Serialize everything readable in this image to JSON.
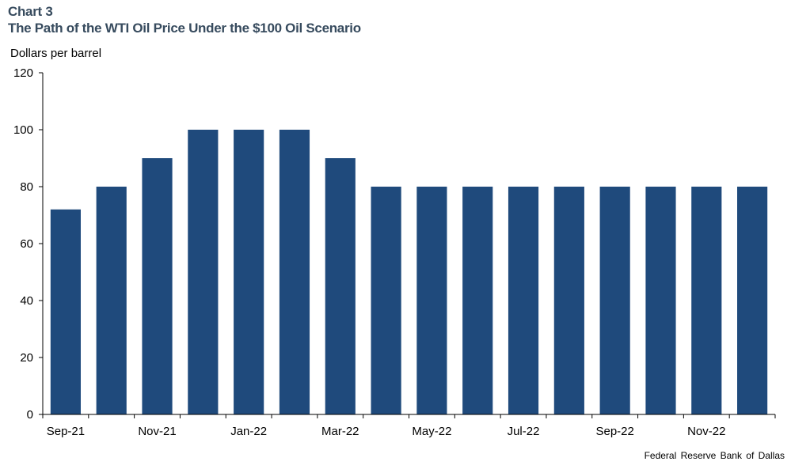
{
  "header": {
    "label": "Chart 3",
    "title": "The Path of the WTI Oil Price Under the $100 Oil Scenario"
  },
  "source": "Federal Reserve Bank of Dallas",
  "colors": {
    "bar": "#1f4a7c",
    "axis": "#000000"
  },
  "chart_data": {
    "type": "bar",
    "ylabel": "Dollars per barrel",
    "ylim": [
      0,
      120
    ],
    "yticks": [
      "0",
      "20",
      "40",
      "60",
      "80",
      "100",
      "120"
    ],
    "categories": [
      "Sep-21",
      "Oct-21",
      "Nov-21",
      "Dec-21",
      "Jan-22",
      "Feb-22",
      "Mar-22",
      "Apr-22",
      "May-22",
      "Jun-22",
      "Jul-22",
      "Aug-22",
      "Sep-22",
      "Oct-22",
      "Nov-22",
      "Dec-22"
    ],
    "x_tick_labels": [
      "Sep-21",
      "Nov-21",
      "Jan-22",
      "Mar-22",
      "May-22",
      "Jul-22",
      "Sep-22",
      "Nov-22"
    ],
    "values": [
      72,
      80,
      90,
      100,
      100,
      100,
      90,
      80,
      80,
      80,
      80,
      80,
      80,
      80,
      80,
      80
    ],
    "grid": false,
    "legend": "none"
  }
}
